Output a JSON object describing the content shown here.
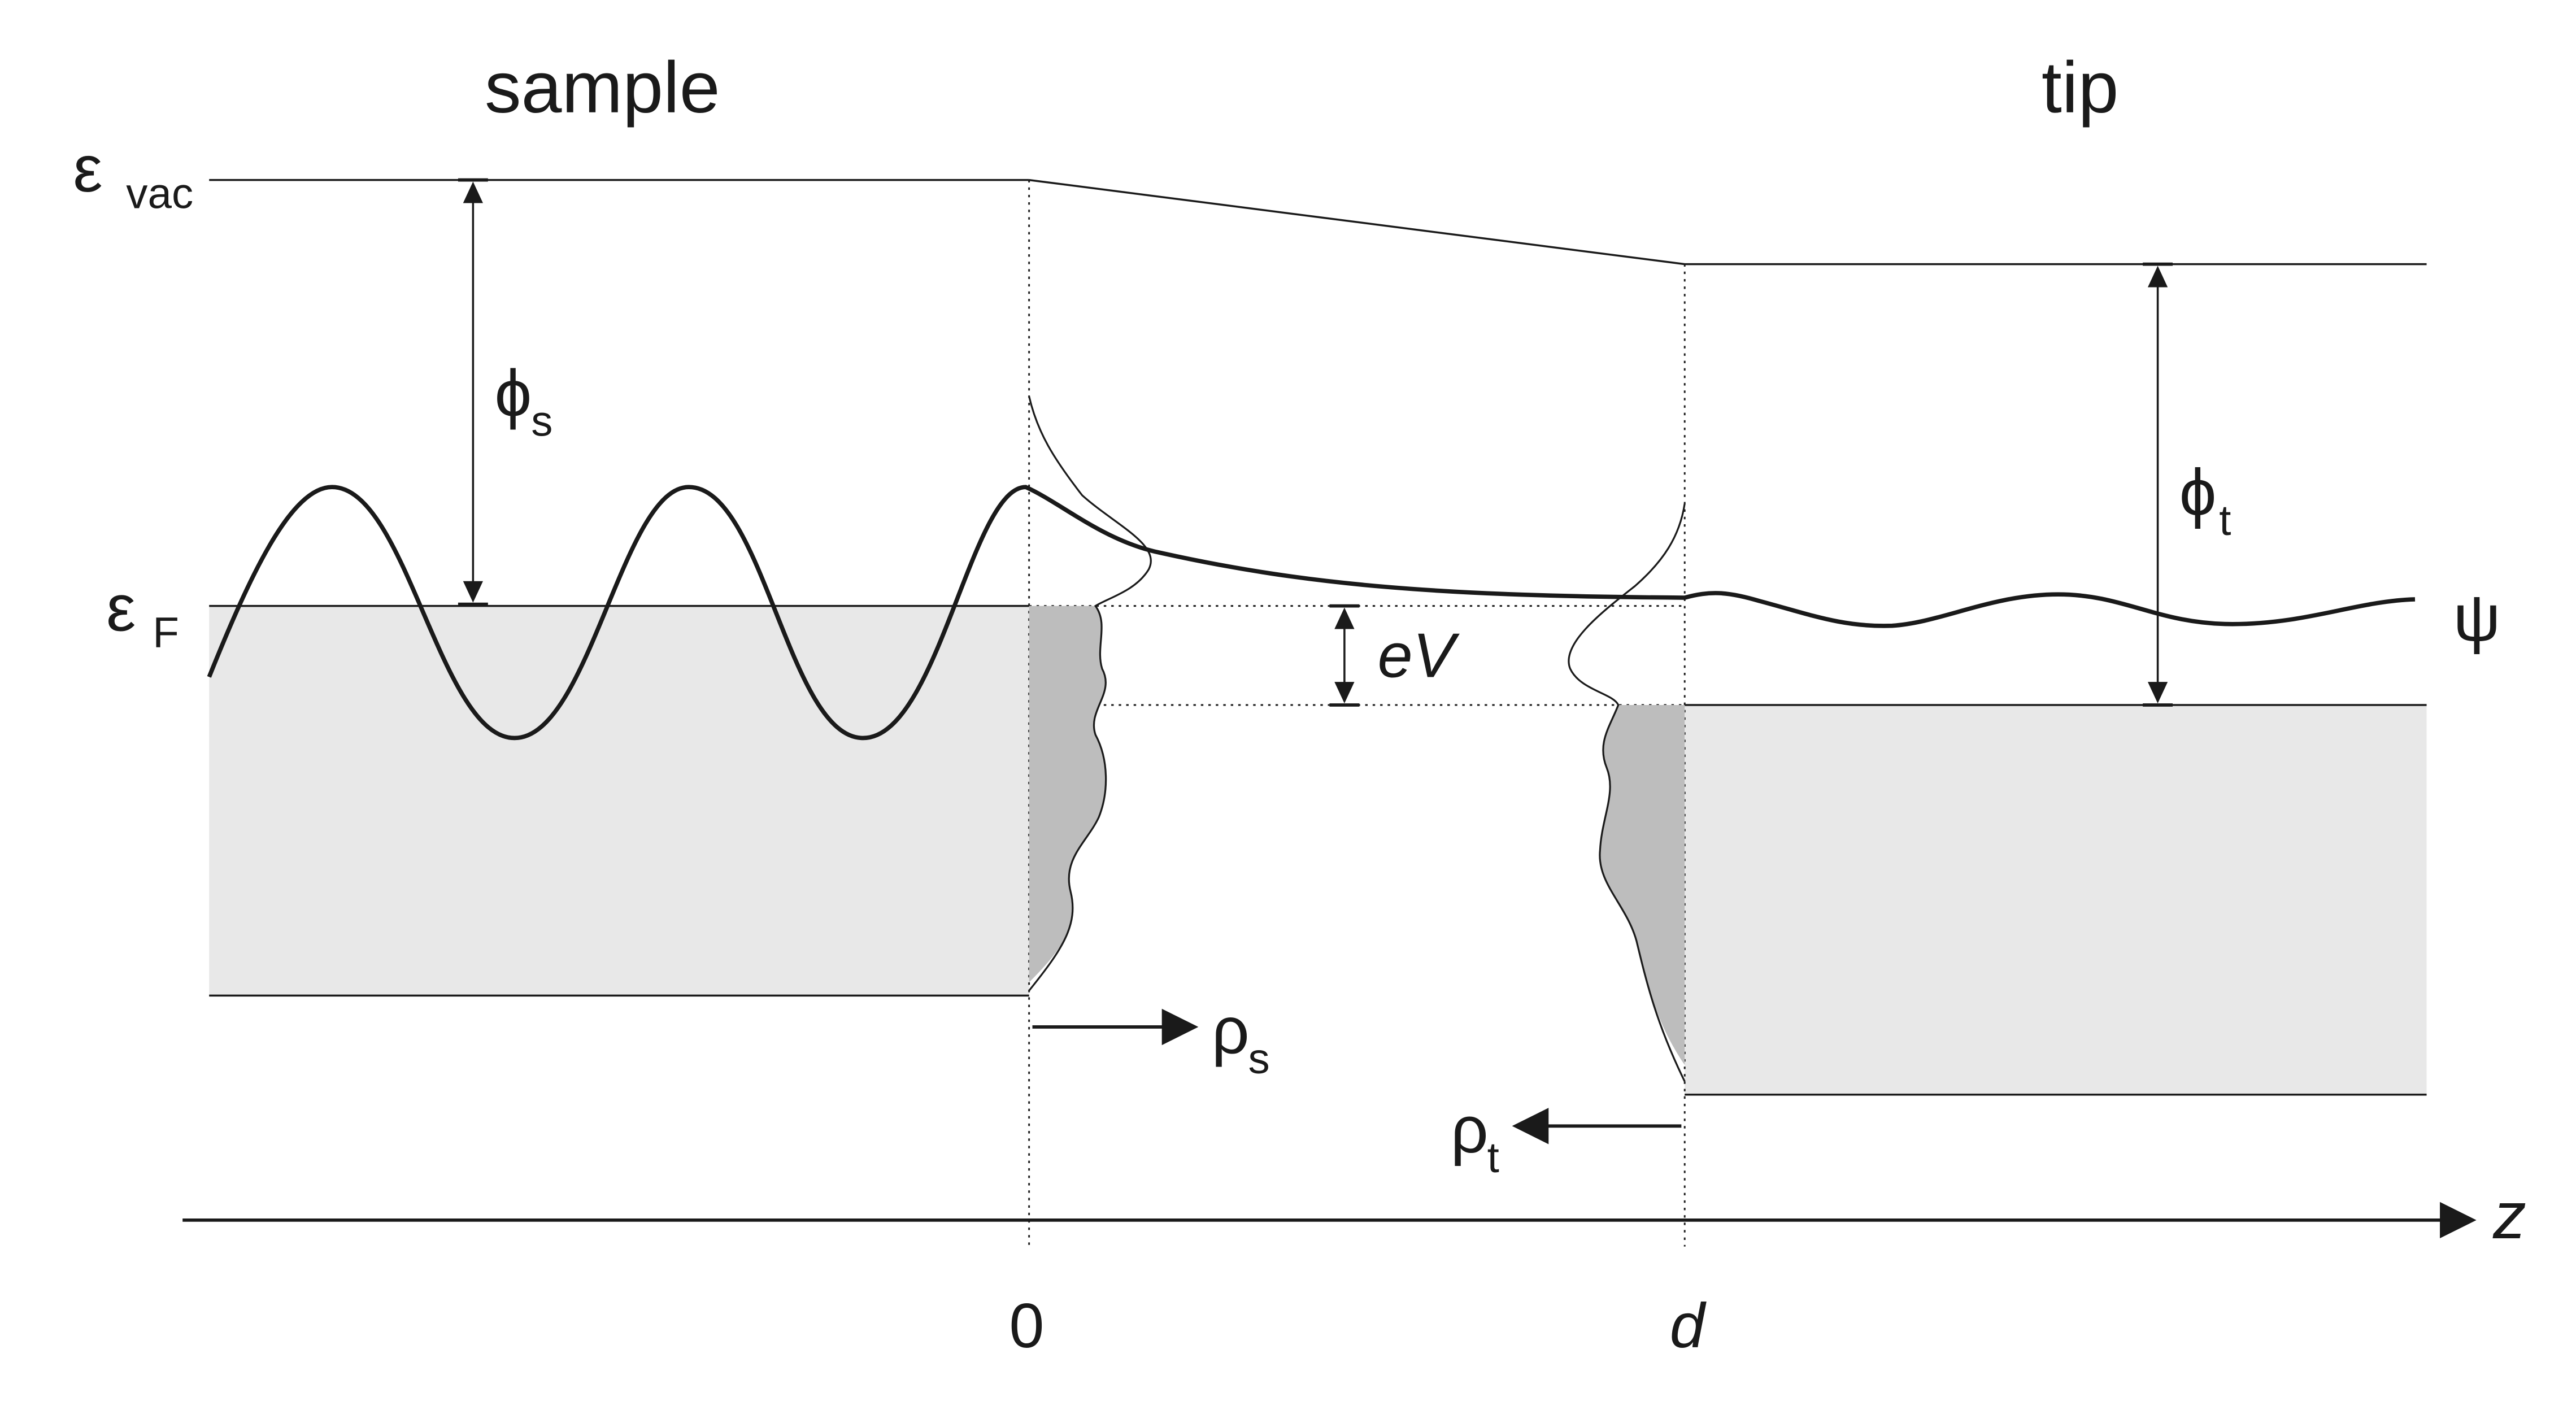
{
  "labels": {
    "sample": "sample",
    "tip": "tip",
    "vacuum_level": "ε",
    "vacuum_level_sub": "vac",
    "fermi_level": "ε",
    "fermi_level_sub": "F",
    "work_function_sample": "ϕ",
    "work_function_sample_sub": "s",
    "work_function_tip": "ϕ",
    "work_function_tip_sub": "t",
    "bias": "eV",
    "wavefunction": "ψ",
    "dos_sample": "ρ",
    "dos_sample_sub": "s",
    "dos_tip": "ρ",
    "dos_tip_sub": "t",
    "axis": "z",
    "origin_tick": "0",
    "gap_tick": "d"
  },
  "colors": {
    "line": "#1a1a1a",
    "band_fill": "#e8e8e8",
    "occupied_dos_fill": "#bdbdbd",
    "background": "#ffffff"
  }
}
